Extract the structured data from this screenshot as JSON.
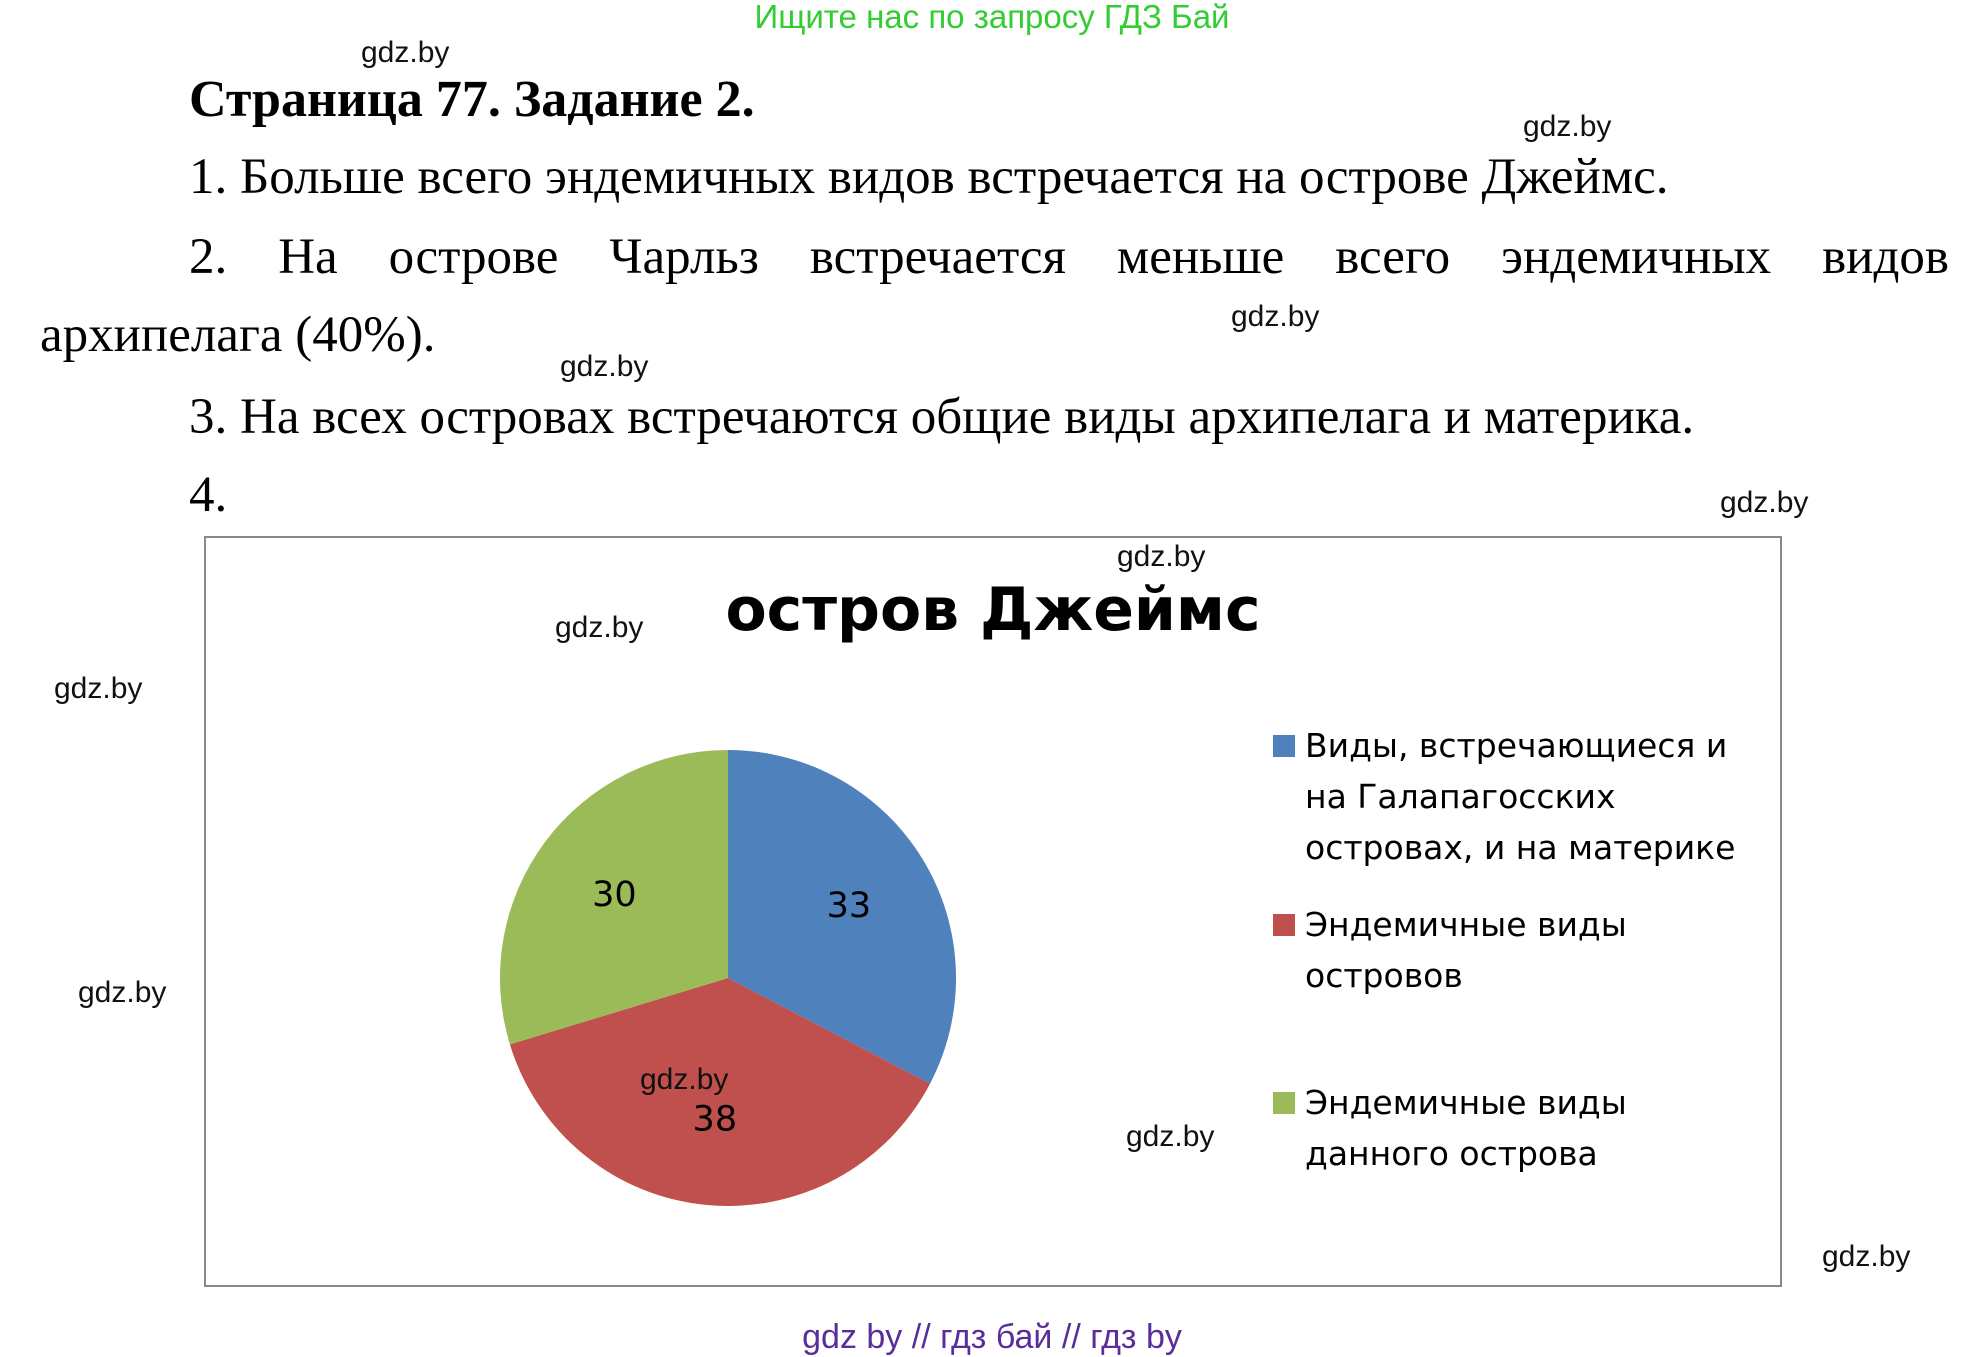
{
  "banner": "Ищите нас по запросу ГДЗ Бай",
  "title": "Страница 77. Задание 2.",
  "answers": [
    "1. Больше всего эндемичных видов встречается на острове Джеймс.",
    "2. На острове Чарльз встречается меньше всего эндемичных видов",
    "архипелага (40%).",
    "3. На всех островах встречаются общие виды архипелага и материка.",
    "4."
  ],
  "watermark": "gdz.by",
  "footer": "gdz by  //  гдз бай  //  гдз by",
  "chart_data": {
    "type": "pie",
    "title": "остров Джеймс",
    "categories": [
      "Виды, встречающиеся и на Галапагосских островах, и на материке",
      "Эндемичные виды островов",
      "Эндемичные виды данного острова"
    ],
    "legend_lines": [
      [
        "Виды, встречающиеся и",
        "на Галапагосских",
        "островах, и на материке"
      ],
      [
        "Эндемичные виды",
        "островов"
      ],
      [
        "Эндемичные виды",
        "данного острова"
      ]
    ],
    "values": [
      33,
      38,
      30
    ],
    "colors": [
      "#4f81bd",
      "#c0504d",
      "#9bbb59"
    ],
    "legend_position": "right"
  }
}
